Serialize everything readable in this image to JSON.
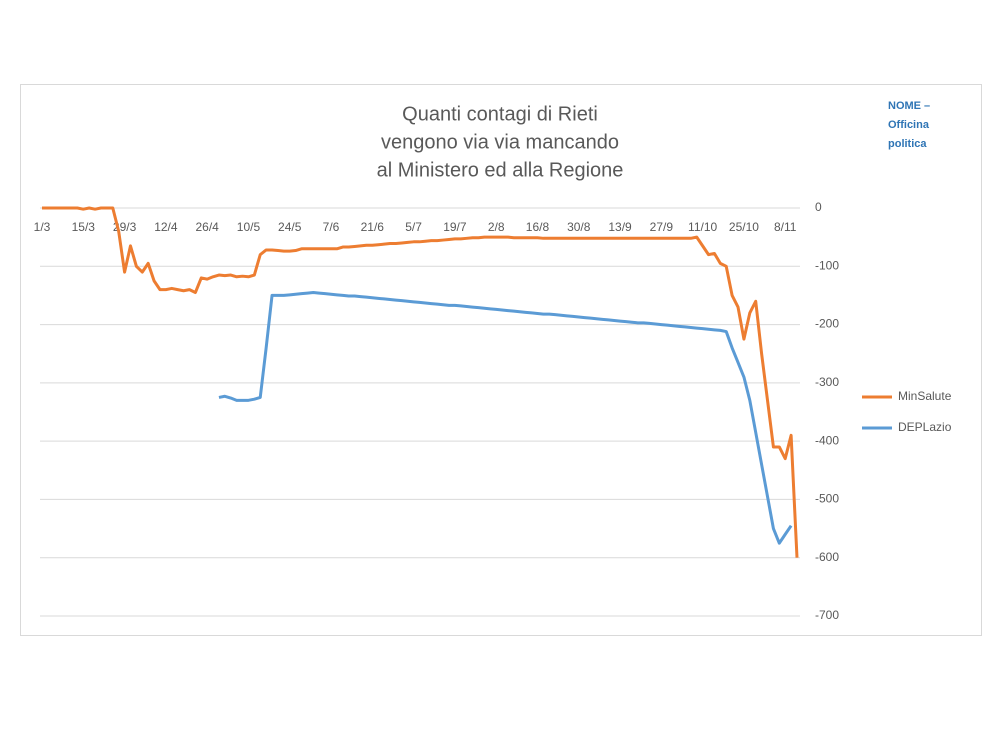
{
  "chart_data": {
    "type": "line",
    "title": [
      "Quanti contagi di Rieti",
      "vengono via via mancando",
      "al Ministero ed alla Regione"
    ],
    "annotation": [
      "NOME –",
      "Officina",
      "politica"
    ],
    "categories": [
      "1/3",
      null,
      null,
      null,
      null,
      null,
      null,
      "15/3",
      null,
      null,
      null,
      null,
      null,
      null,
      "29/3",
      null,
      null,
      null,
      null,
      null,
      null,
      "12/4",
      null,
      null,
      null,
      null,
      null,
      null,
      "26/4",
      null,
      null,
      null,
      null,
      null,
      null,
      "10/5",
      null,
      null,
      null,
      null,
      null,
      null,
      "24/5",
      null,
      null,
      null,
      null,
      null,
      null,
      "7/6",
      null,
      null,
      null,
      null,
      null,
      null,
      "21/6",
      null,
      null,
      null,
      null,
      null,
      null,
      "5/7",
      null,
      null,
      null,
      null,
      null,
      null,
      "19/7",
      null,
      null,
      null,
      null,
      null,
      null,
      "2/8",
      null,
      null,
      null,
      null,
      null,
      null,
      "16/8",
      null,
      null,
      null,
      null,
      null,
      null,
      "30/8",
      null,
      null,
      null,
      null,
      null,
      null,
      "13/9",
      null,
      null,
      null,
      null,
      null,
      null,
      "27/9",
      null,
      null,
      null,
      null,
      null,
      null,
      "11/10",
      null,
      null,
      null,
      null,
      null,
      null,
      "25/10",
      null,
      null,
      null,
      null,
      null,
      null,
      "8/11",
      null,
      null
    ],
    "series": [
      {
        "name": "MinSalute",
        "color": "#ed7d31",
        "values": [
          0,
          0,
          0,
          0,
          0,
          0,
          0,
          -2,
          0,
          -2,
          0,
          0,
          0,
          -40,
          -110,
          -65,
          -100,
          -110,
          -95,
          -125,
          -140,
          -140,
          -138,
          -140,
          -142,
          -140,
          -145,
          -120,
          -122,
          -118,
          -115,
          -116,
          -115,
          -118,
          -117,
          -118,
          -115,
          -80,
          -72,
          -72,
          -73,
          -74,
          -74,
          -73,
          -70,
          -70,
          -70,
          -70,
          -70,
          -70,
          -70,
          -67,
          -67,
          -66,
          -65,
          -64,
          -64,
          -63,
          -62,
          -61,
          -61,
          -60,
          -59,
          -58,
          -58,
          -57,
          -56,
          -56,
          -55,
          -54,
          -53,
          -53,
          -52,
          -51,
          -51,
          -50,
          -50,
          -50,
          -50,
          -50,
          -51,
          -51,
          -51,
          -51,
          -51,
          -52,
          -52,
          -52,
          -52,
          -52,
          -52,
          -52,
          -52,
          -52,
          -52,
          -52,
          -52,
          -52,
          -52,
          -52,
          -52,
          -52,
          -52,
          -52,
          -52,
          -52,
          -52,
          -52,
          -52,
          -52,
          -52,
          -50,
          -65,
          -80,
          -78,
          -95,
          -100,
          -150,
          -170,
          -225,
          -180,
          -160,
          -250,
          -330,
          -410,
          -410,
          -430,
          -390,
          -600
        ]
      },
      {
        "name": "DEPLazio",
        "color": "#5b9bd5",
        "values": [
          null,
          null,
          null,
          null,
          null,
          null,
          null,
          null,
          null,
          null,
          null,
          null,
          null,
          null,
          null,
          null,
          null,
          null,
          null,
          null,
          null,
          null,
          null,
          null,
          null,
          null,
          null,
          null,
          null,
          null,
          -325,
          -323,
          -326,
          -330,
          -330,
          -330,
          -328,
          -325,
          -240,
          -150,
          -150,
          -150,
          -149,
          -148,
          -147,
          -146,
          -145,
          -146,
          -147,
          -148,
          -149,
          -150,
          -151,
          -151,
          -152,
          -153,
          -154,
          -155,
          -156,
          -157,
          -158,
          -159,
          -160,
          -161,
          -162,
          -163,
          -164,
          -165,
          -166,
          -167,
          -167,
          -168,
          -169,
          -170,
          -171,
          -172,
          -173,
          -174,
          -175,
          -176,
          -177,
          -178,
          -179,
          -180,
          -181,
          -182,
          -182,
          -183,
          -184,
          -185,
          -186,
          -187,
          -188,
          -189,
          -190,
          -191,
          -192,
          -193,
          -194,
          -195,
          -196,
          -197,
          -197,
          -198,
          -199,
          -200,
          -201,
          -202,
          -203,
          -204,
          -205,
          -206,
          -207,
          -208,
          -209,
          -210,
          -212,
          -240,
          -265,
          -290,
          -330,
          -385,
          -440,
          -495,
          -550,
          -575,
          -560,
          -545,
          null
        ]
      }
    ],
    "ylim": [
      -700,
      0
    ],
    "yticks": [
      0,
      -100,
      -200,
      -300,
      -400,
      -500,
      -600,
      -700
    ],
    "grid": true,
    "legend": "right"
  }
}
